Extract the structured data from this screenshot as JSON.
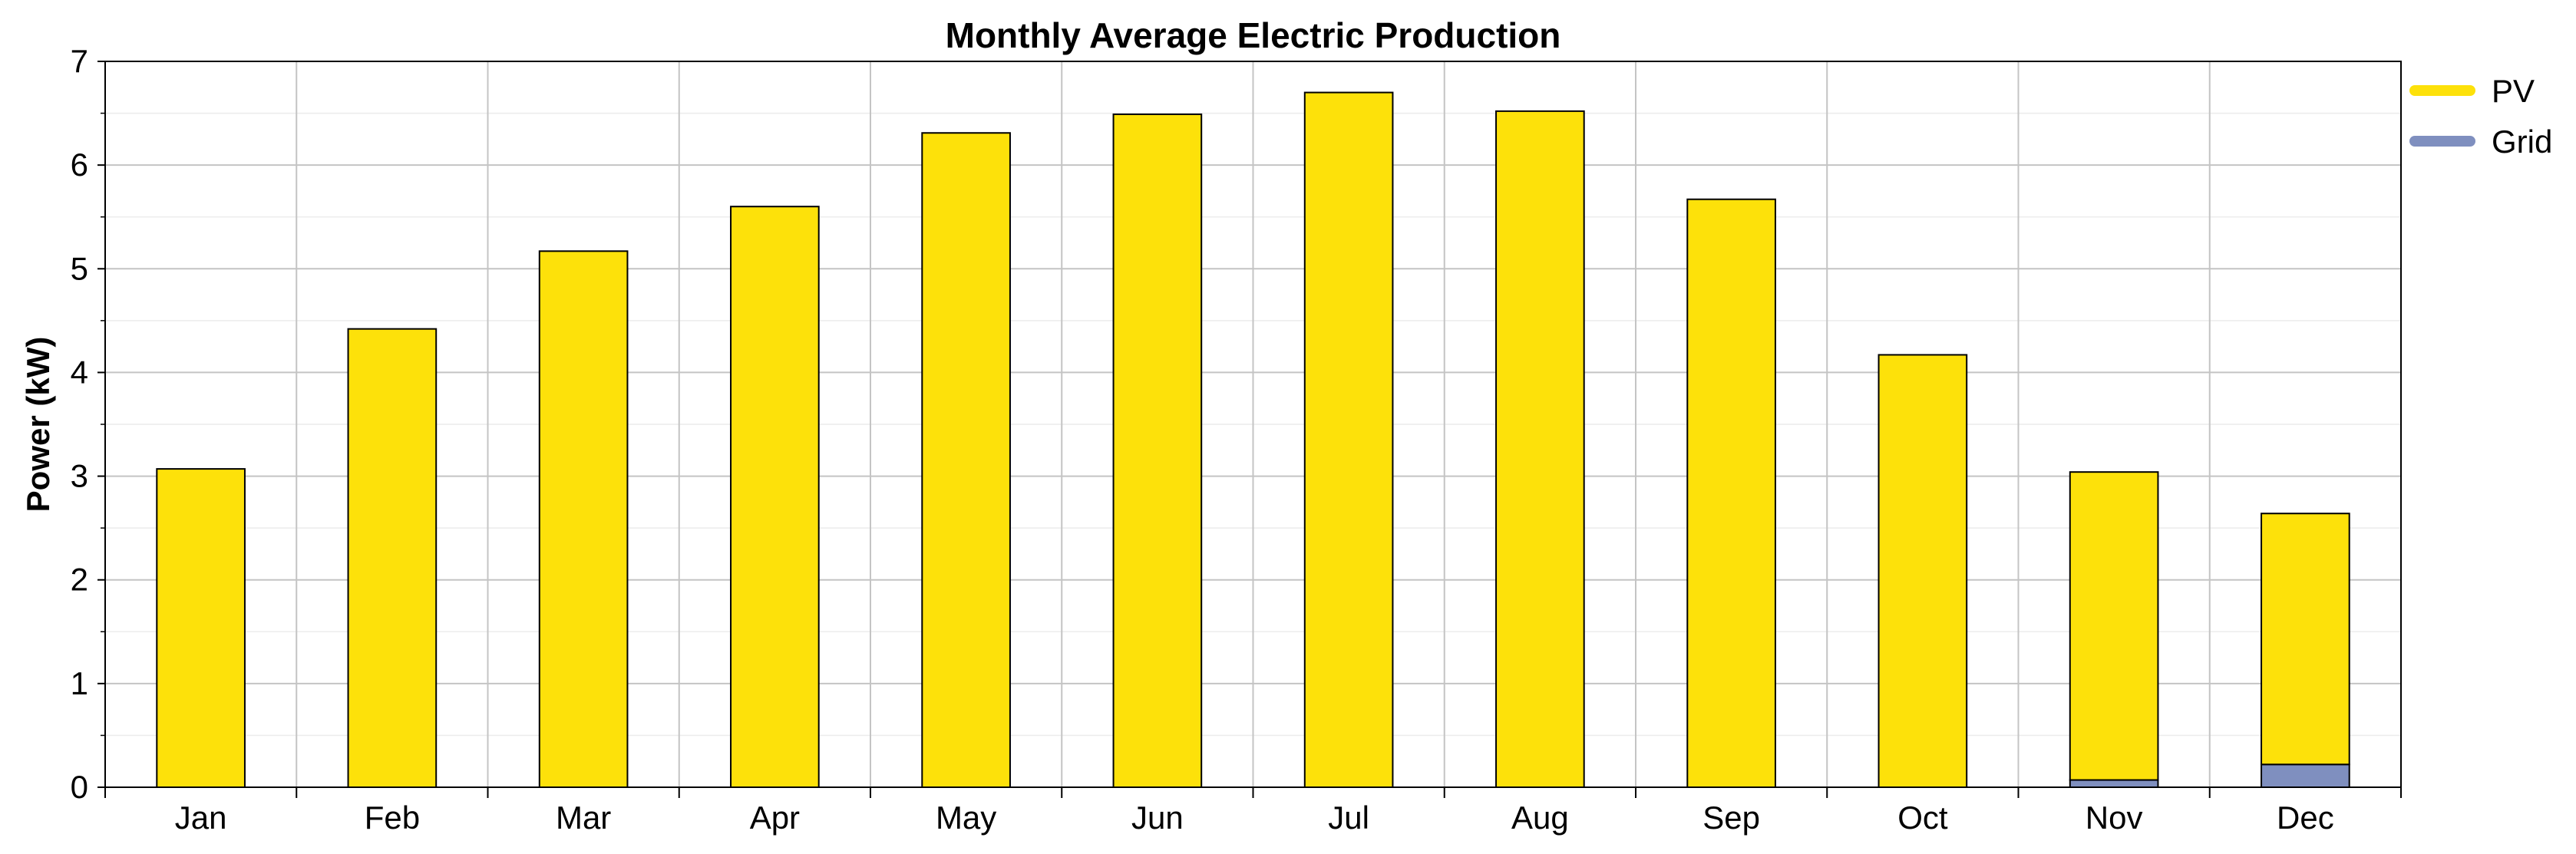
{
  "chart_data": {
    "type": "bar",
    "stacked": true,
    "title": "Monthly Average Electric Production",
    "xlabel": "",
    "ylabel": "Power (kW)",
    "ylim": [
      0,
      7
    ],
    "yticks": [
      "0",
      "1",
      "2",
      "3",
      "4",
      "5",
      "6",
      "7"
    ],
    "categories": [
      "Jan",
      "Feb",
      "Mar",
      "Apr",
      "May",
      "Jun",
      "Jul",
      "Aug",
      "Sep",
      "Oct",
      "Nov",
      "Dec"
    ],
    "series": [
      {
        "name": "Grid",
        "color": "#7f8fbf",
        "values": [
          0,
          0,
          0,
          0,
          0,
          0,
          0,
          0,
          0,
          0,
          0.07,
          0.22
        ]
      },
      {
        "name": "PV",
        "color": "#fde10a",
        "values": [
          3.07,
          4.42,
          5.17,
          5.6,
          6.31,
          6.49,
          6.7,
          6.52,
          5.67,
          4.17,
          2.97,
          2.42
        ]
      }
    ],
    "legend": {
      "position": "top-right",
      "entries": [
        "PV",
        "Grid"
      ]
    },
    "grid": true
  }
}
